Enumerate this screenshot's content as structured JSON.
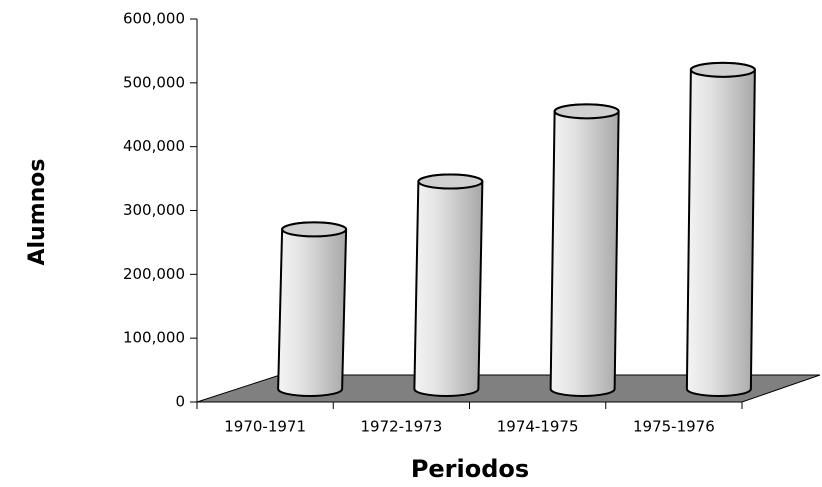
{
  "chart_data": {
    "type": "bar",
    "categories": [
      "1970-1971",
      "1972-1973",
      "1974-1975",
      "1975-1976"
    ],
    "values": [
      250000,
      325000,
      435000,
      500000
    ],
    "color": "#d0d0d0",
    "ylim": [
      0,
      600000
    ],
    "yticks": [
      0,
      {
        "value": 100000,
        "label": "100,000"
      },
      {
        "value": 200000,
        "label": "200,000"
      },
      {
        "value": 300000,
        "label": "300,000"
      },
      {
        "value": 400000,
        "label": "400,000"
      },
      {
        "value": 500000,
        "label": "500,000"
      },
      {
        "value": 600000,
        "label": "600,000"
      }
    ],
    "y_label": "Alumnos",
    "x_label": "Periodos"
  }
}
